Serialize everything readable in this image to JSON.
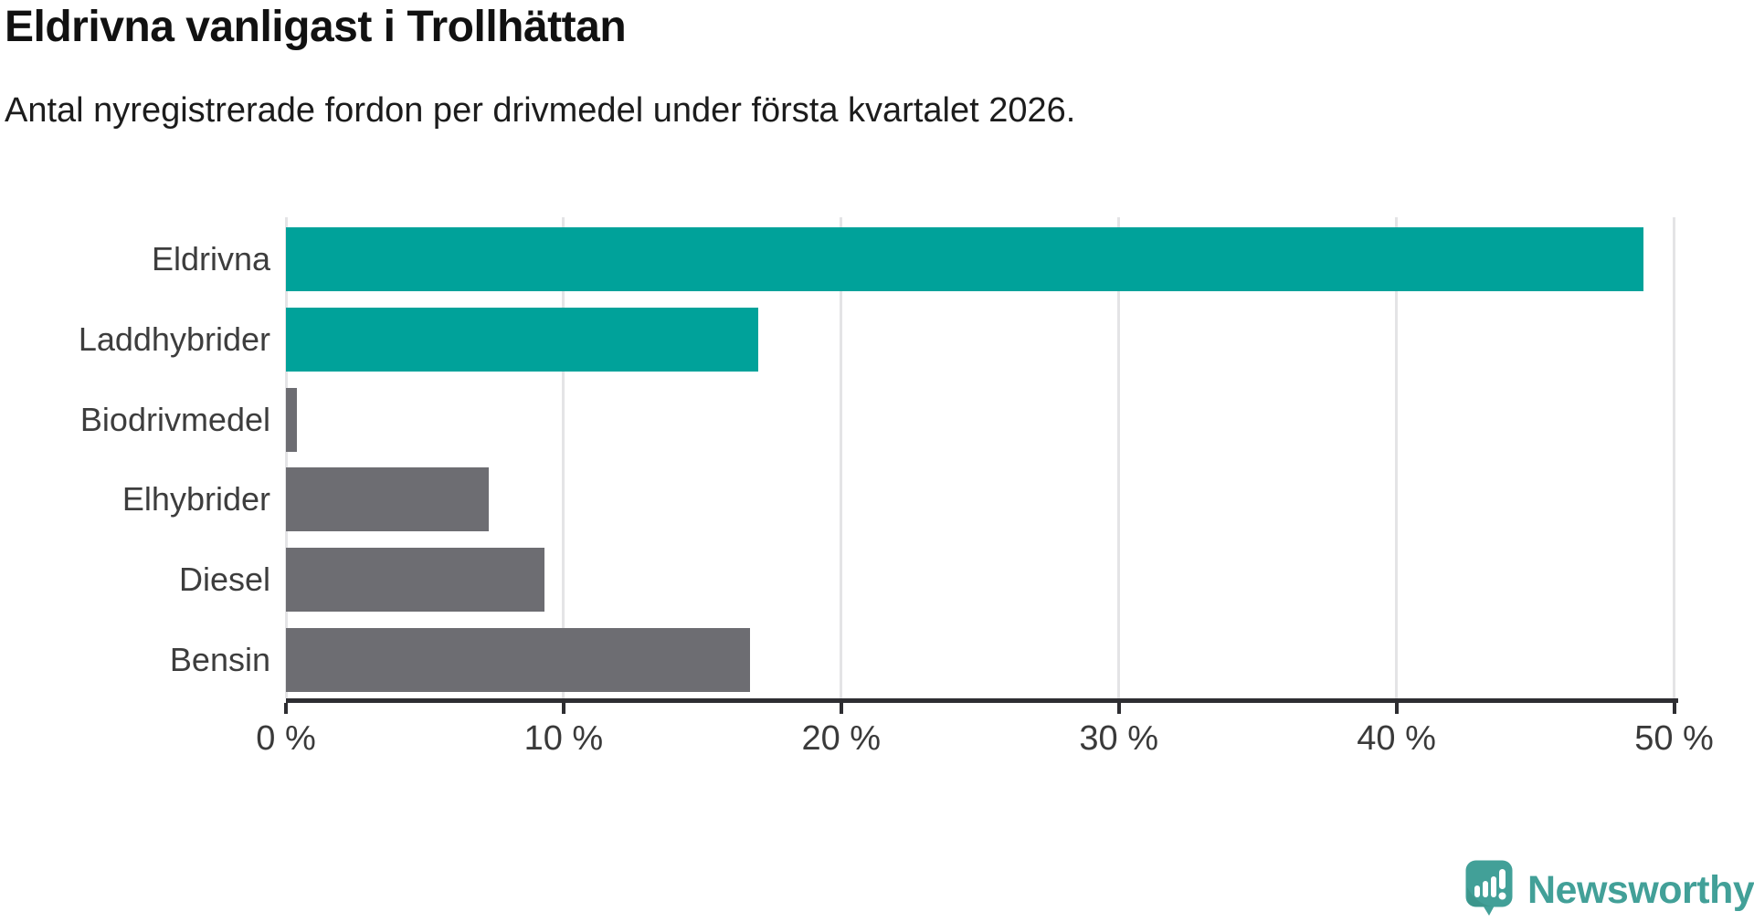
{
  "title": "Eldrivna vanligast i Trollhättan",
  "subtitle": "Antal nyregistrerade fordon per drivmedel under första kvartalet 2026.",
  "chart_data": {
    "type": "bar",
    "orientation": "horizontal",
    "title": "Eldrivna vanligast i Trollhättan",
    "subtitle": "Antal nyregistrerade fordon per drivmedel under första kvartalet 2026.",
    "categories": [
      "Eldrivna",
      "Laddhybrider",
      "Biodrivmedel",
      "Elhybrider",
      "Diesel",
      "Bensin"
    ],
    "values": [
      48.9,
      17.0,
      0.4,
      7.3,
      9.3,
      16.7
    ],
    "unit": "%",
    "xlim": [
      0,
      50
    ],
    "xticks": [
      0,
      10,
      20,
      30,
      40,
      50
    ],
    "xtick_labels": [
      "0 %",
      "10 %",
      "20 %",
      "30 %",
      "40 %",
      "50 %"
    ],
    "bar_colors": [
      "#00a29a",
      "#00a29a",
      "#6d6d72",
      "#6d6d72",
      "#6d6d72",
      "#6d6d72"
    ],
    "grid": true,
    "legend": false
  },
  "colors": {
    "highlight": "#00a29a",
    "neutral": "#6d6d72",
    "axis": "#2e2e32",
    "gridline": "#e4e4e6",
    "brand": "#42a098"
  },
  "branding": {
    "name": "Newsworthy"
  }
}
